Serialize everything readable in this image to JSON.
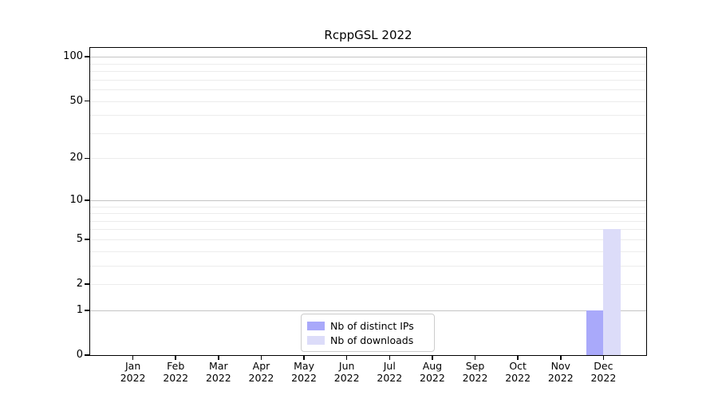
{
  "title": "RcppGSL 2022",
  "legend": {
    "items": [
      {
        "label": "Nb of distinct IPs",
        "color": "#a9a9fa"
      },
      {
        "label": "Nb of downloads",
        "color": "#dcdcf9"
      }
    ]
  },
  "chart_data": {
    "type": "bar",
    "title": "RcppGSL 2022",
    "categories": [
      "Jan 2022",
      "Feb 2022",
      "Mar 2022",
      "Apr 2022",
      "May 2022",
      "Jun 2022",
      "Jul 2022",
      "Aug 2022",
      "Sep 2022",
      "Oct 2022",
      "Nov 2022",
      "Dec 2022"
    ],
    "series": [
      {
        "name": "Nb of distinct IPs",
        "color": "#a9a9fa",
        "values": [
          0,
          0,
          0,
          0,
          0,
          0,
          0,
          0,
          0,
          0,
          0,
          1
        ]
      },
      {
        "name": "Nb of downloads",
        "color": "#dcdcf9",
        "values": [
          0,
          0,
          0,
          0,
          0,
          0,
          0,
          0,
          0,
          0,
          0,
          6
        ]
      }
    ],
    "xlabel": "",
    "ylabel": "",
    "yscale": "log1p",
    "ylim": [
      0,
      115
    ],
    "yticks": [
      100,
      50,
      20,
      10,
      5,
      2,
      1,
      0
    ],
    "grid": true,
    "legend_position": "lower center"
  },
  "colors": {
    "grid_minor": "#ececec",
    "grid_major": "#c4c4c4",
    "axis": "#000000",
    "background": "#ffffff"
  }
}
